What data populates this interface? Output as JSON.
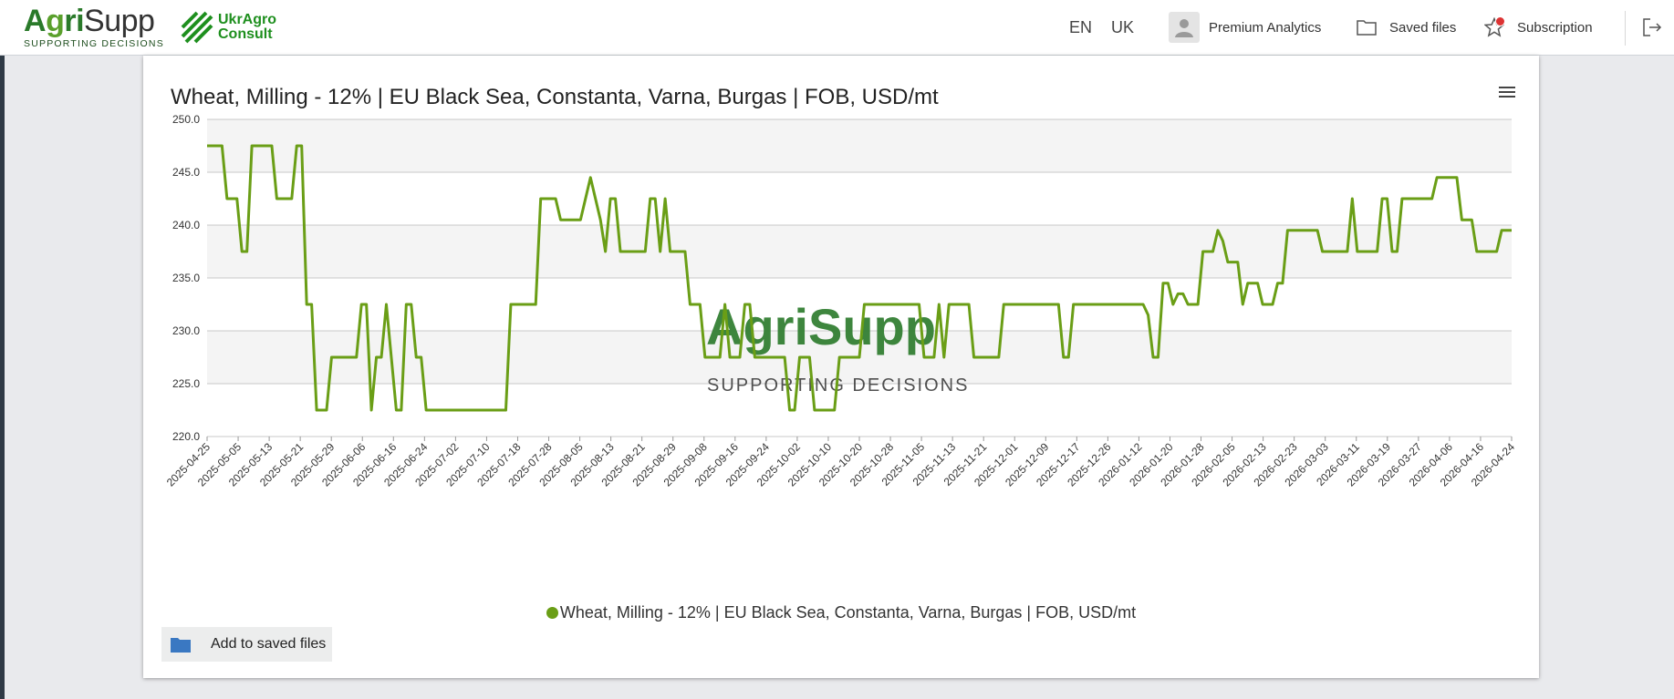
{
  "header": {
    "logo": {
      "word_a": "A",
      "word_g": "g",
      "word_ri": "ri",
      "word_supp": "Supp",
      "tagline": "SUPPORTING DECISIONS"
    },
    "partner_logo": {
      "line1": "UkrAgro",
      "line2": "Consult"
    },
    "languages": [
      "EN",
      "UK"
    ],
    "nav": {
      "premium": "Premium Analytics",
      "saved": "Saved files",
      "subscription": "Subscription"
    }
  },
  "colors": {
    "series": "#6a9e16",
    "band": "#f4f4f4",
    "brand_green": "#2a7a2a"
  },
  "icons": {
    "menu": "hamburger-menu-icon",
    "avatar": "user-avatar-icon",
    "folder": "folder-icon",
    "star": "star-icon",
    "logout": "logout-icon"
  },
  "watermark": {
    "word": "AgriSupp",
    "tagline": "SUPPORTING DECISIONS"
  },
  "chart_data": {
    "type": "line",
    "title": "Wheat, Milling - 12% | EU Black Sea, Constanta, Varna, Burgas | FOB, USD/mt",
    "ylim": [
      220,
      250
    ],
    "yticks": [
      "250.0",
      "245.0",
      "240.0",
      "235.0",
      "230.0",
      "225.0",
      "220.0"
    ],
    "grid": true,
    "legend": "bottom-center",
    "xticks": [
      "2025-04-25",
      "2025-05-05",
      "2025-05-13",
      "2025-05-21",
      "2025-05-29",
      "2025-06-06",
      "2025-06-16",
      "2025-06-24",
      "2025-07-02",
      "2025-07-10",
      "2025-07-18",
      "2025-07-28",
      "2025-08-05",
      "2025-08-13",
      "2025-08-21",
      "2025-08-29",
      "2025-09-08",
      "2025-09-16",
      "2025-09-24",
      "2025-10-02",
      "2025-10-10",
      "2025-10-20",
      "2025-10-28",
      "2025-11-05",
      "2025-11-13",
      "2025-11-21",
      "2025-12-01",
      "2025-12-09",
      "2025-12-17",
      "2025-12-26",
      "2026-01-12",
      "2026-01-20",
      "2026-01-28",
      "2026-02-05",
      "2026-02-13",
      "2026-02-23",
      "2026-03-03",
      "2026-03-11",
      "2026-03-19",
      "2026-03-27",
      "2026-04-06",
      "2026-04-16",
      "2026-04-24"
    ],
    "series": [
      {
        "name": "Wheat, Milling - 12% | EU Black Sea, Constanta, Varna, Burgas | FOB, USD/mt",
        "values": [
          247.5,
          247.5,
          247.5,
          247.5,
          242.5,
          242.5,
          242.5,
          237.5,
          237.5,
          247.5,
          247.5,
          247.5,
          247.5,
          247.5,
          242.5,
          242.5,
          242.5,
          242.5,
          247.5,
          247.5,
          232.5,
          232.5,
          222.5,
          222.5,
          222.5,
          227.5,
          227.5,
          227.5,
          227.5,
          227.5,
          227.5,
          232.5,
          232.5,
          222.5,
          227.5,
          227.5,
          232.5,
          227.5,
          222.5,
          222.5,
          232.5,
          232.5,
          227.5,
          227.5,
          222.5,
          222.5,
          222.5,
          222.5,
          222.5,
          222.5,
          222.5,
          222.5,
          222.5,
          222.5,
          222.5,
          222.5,
          222.5,
          222.5,
          222.5,
          222.5,
          222.5,
          232.5,
          232.5,
          232.5,
          232.5,
          232.5,
          232.5,
          242.5,
          242.5,
          242.5,
          242.5,
          240.5,
          240.5,
          240.5,
          240.5,
          240.5,
          242.5,
          244.5,
          242.5,
          240.5,
          237.5,
          242.5,
          242.5,
          237.5,
          237.5,
          237.5,
          237.5,
          237.5,
          237.5,
          242.5,
          242.5,
          237.5,
          242.5,
          237.5,
          237.5,
          237.5,
          237.5,
          232.5,
          232.5,
          232.5,
          227.5,
          227.5,
          227.5,
          227.5,
          232.5,
          227.5,
          227.5,
          227.5,
          232.5,
          232.5,
          227.5,
          227.5,
          227.5,
          227.5,
          227.5,
          227.5,
          227.5,
          222.5,
          222.5,
          227.5,
          227.5,
          227.5,
          222.5,
          222.5,
          222.5,
          222.5,
          222.5,
          227.5,
          227.5,
          227.5,
          227.5,
          227.5,
          232.5,
          232.5,
          232.5,
          232.5,
          232.5,
          232.5,
          232.5,
          232.5,
          232.5,
          232.5,
          232.5,
          232.5,
          227.5,
          227.5,
          227.5,
          232.5,
          227.5,
          232.5,
          232.5,
          232.5,
          232.5,
          232.5,
          227.5,
          227.5,
          227.5,
          227.5,
          227.5,
          227.5,
          232.5,
          232.5,
          232.5,
          232.5,
          232.5,
          232.5,
          232.5,
          232.5,
          232.5,
          232.5,
          232.5,
          232.5,
          227.5,
          227.5,
          232.5,
          232.5,
          232.5,
          232.5,
          232.5,
          232.5,
          232.5,
          232.5,
          232.5,
          232.5,
          232.5,
          232.5,
          232.5,
          232.5,
          232.5,
          231.5,
          227.5,
          227.5,
          234.5,
          234.5,
          232.5,
          233.5,
          233.5,
          232.5,
          232.5,
          232.5,
          237.5,
          237.5,
          237.5,
          239.5,
          238.5,
          236.5,
          236.5,
          236.5,
          232.5,
          234.5,
          234.5,
          234.5,
          232.5,
          232.5,
          232.5,
          234.5,
          234.5,
          239.5,
          239.5,
          239.5,
          239.5,
          239.5,
          239.5,
          239.5,
          237.5,
          237.5,
          237.5,
          237.5,
          237.5,
          237.5,
          242.5,
          237.5,
          237.5,
          237.5,
          237.5,
          237.5,
          242.5,
          242.5,
          237.5,
          237.5,
          242.5,
          242.5,
          242.5,
          242.5,
          242.5,
          242.5,
          242.5,
          244.5,
          244.5,
          244.5,
          244.5,
          244.5,
          240.5,
          240.5,
          240.5,
          237.5,
          237.5,
          237.5,
          237.5,
          237.5,
          239.5,
          239.5,
          239.5
        ]
      }
    ]
  },
  "actions": {
    "add_saved": "Add to saved files"
  }
}
